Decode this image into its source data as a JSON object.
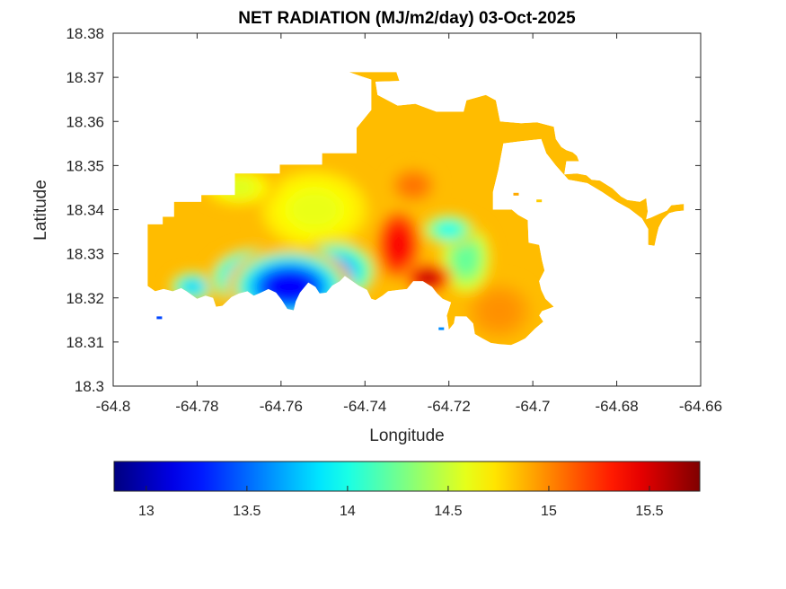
{
  "chart_data": {
    "type": "heatmap",
    "subtype": "filled-contour map",
    "title": "NET RADIATION (MJ/m2/day) 03-Oct-2025",
    "xlabel": "Longitude",
    "ylabel": "Latitude",
    "xlim": [
      -64.8,
      -64.66
    ],
    "ylim": [
      18.3,
      18.38
    ],
    "xticks": [
      -64.8,
      -64.78,
      -64.76,
      -64.74,
      -64.72,
      -64.7,
      -64.68,
      -64.66
    ],
    "xtick_labels": [
      "-64.8",
      "-64.78",
      "-64.76",
      "-64.74",
      "-64.72",
      "-64.7",
      "-64.68",
      "-64.66"
    ],
    "yticks": [
      18.3,
      18.31,
      18.32,
      18.33,
      18.34,
      18.35,
      18.36,
      18.37,
      18.38
    ],
    "ytick_labels": [
      "18.3",
      "18.31",
      "18.32",
      "18.33",
      "18.34",
      "18.35",
      "18.36",
      "18.37",
      "18.38"
    ],
    "grid": false,
    "colormap": "jet",
    "colorbar": {
      "orientation": "horizontal",
      "location": "bottom",
      "clim": [
        12.84,
        15.75
      ],
      "ticks": [
        13,
        13.5,
        14,
        14.5,
        15,
        15.5
      ],
      "tick_labels": [
        "13",
        "13.5",
        "14",
        "14.5",
        "15",
        "15.5"
      ]
    },
    "background_value": 14.85,
    "land_outline": [
      [
        -64.7918,
        18.3227
      ],
      [
        -64.7918,
        18.3367
      ],
      [
        -64.7882,
        18.3367
      ],
      [
        -64.7882,
        18.3384
      ],
      [
        -64.7855,
        18.3384
      ],
      [
        -64.7855,
        18.3418
      ],
      [
        -64.779,
        18.3418
      ],
      [
        -64.779,
        18.3433
      ],
      [
        -64.771,
        18.3433
      ],
      [
        -64.771,
        18.3482
      ],
      [
        -64.7603,
        18.3482
      ],
      [
        -64.7603,
        18.3502
      ],
      [
        -64.7502,
        18.3502
      ],
      [
        -64.7502,
        18.3528
      ],
      [
        -64.742,
        18.3528
      ],
      [
        -64.742,
        18.3585
      ],
      [
        -64.7385,
        18.3626
      ],
      [
        -64.7385,
        18.3695
      ],
      [
        -64.7408,
        18.3702
      ],
      [
        -64.7438,
        18.3712
      ],
      [
        -64.7325,
        18.3712
      ],
      [
        -64.7318,
        18.3692
      ],
      [
        -64.7375,
        18.369
      ],
      [
        -64.737,
        18.366
      ],
      [
        -64.7322,
        18.3636
      ],
      [
        -64.728,
        18.364
      ],
      [
        -64.723,
        18.3622
      ],
      [
        -64.7165,
        18.3622
      ],
      [
        -64.7158,
        18.3648
      ],
      [
        -64.7112,
        18.366
      ],
      [
        -64.7088,
        18.3648
      ],
      [
        -64.7078,
        18.36
      ],
      [
        -64.7028,
        18.3596
      ],
      [
        -64.699,
        18.3598
      ],
      [
        -64.695,
        18.3588
      ],
      [
        -64.6945,
        18.356
      ],
      [
        -64.6932,
        18.3542
      ],
      [
        -64.692,
        18.3535
      ],
      [
        -64.6905,
        18.353
      ],
      [
        -64.6895,
        18.3522
      ],
      [
        -64.689,
        18.351
      ],
      [
        -64.692,
        18.351
      ],
      [
        -64.6925,
        18.348
      ],
      [
        -64.6895,
        18.3482
      ],
      [
        -64.6872,
        18.3478
      ],
      [
        -64.686,
        18.3468
      ],
      [
        -64.684,
        18.3466
      ],
      [
        -64.681,
        18.3448
      ],
      [
        -64.679,
        18.343
      ],
      [
        -64.6775,
        18.3422
      ],
      [
        -64.6745,
        18.3418
      ],
      [
        -64.673,
        18.3426
      ],
      [
        -64.6726,
        18.3396
      ],
      [
        -64.673,
        18.3378
      ],
      [
        -64.6718,
        18.3382
      ],
      [
        -64.67,
        18.339
      ],
      [
        -64.668,
        18.3398
      ],
      [
        -64.667,
        18.341
      ],
      [
        -64.664,
        18.3413
      ],
      [
        -64.664,
        18.3398
      ],
      [
        -64.666,
        18.3396
      ],
      [
        -64.6675,
        18.3392
      ],
      [
        -64.669,
        18.3378
      ],
      [
        -64.67,
        18.336
      ],
      [
        -64.6705,
        18.334
      ],
      [
        -64.671,
        18.3318
      ],
      [
        -64.6725,
        18.332
      ],
      [
        -64.6725,
        18.3356
      ],
      [
        -64.674,
        18.338
      ],
      [
        -64.677,
        18.3402
      ],
      [
        -64.68,
        18.3418
      ],
      [
        -64.6835,
        18.344
      ],
      [
        -64.687,
        18.346
      ],
      [
        -64.6915,
        18.3468
      ],
      [
        -64.6945,
        18.35
      ],
      [
        -64.6968,
        18.3528
      ],
      [
        -64.698,
        18.356
      ],
      [
        -64.703,
        18.3555
      ],
      [
        -64.707,
        18.355
      ],
      [
        -64.7082,
        18.349
      ],
      [
        -64.7095,
        18.344
      ],
      [
        -64.7095,
        18.34
      ],
      [
        -64.705,
        18.34
      ],
      [
        -64.7035,
        18.3388
      ],
      [
        -64.7012,
        18.3376
      ],
      [
        -64.701,
        18.3325
      ],
      [
        -64.6985,
        18.332
      ],
      [
        -64.6978,
        18.3285
      ],
      [
        -64.6972,
        18.3262
      ],
      [
        -64.6985,
        18.3238
      ],
      [
        -64.698,
        18.3218
      ],
      [
        -64.697,
        18.3198
      ],
      [
        -64.695,
        18.318
      ],
      [
        -64.6978,
        18.317
      ],
      [
        -64.6985,
        18.316
      ],
      [
        -64.6975,
        18.3146
      ],
      [
        -64.6995,
        18.313
      ],
      [
        -64.7018,
        18.3108
      ],
      [
        -64.7035,
        18.31
      ],
      [
        -64.7052,
        18.3093
      ],
      [
        -64.708,
        18.3095
      ],
      [
        -64.71,
        18.3098
      ],
      [
        -64.712,
        18.3108
      ],
      [
        -64.7138,
        18.3118
      ],
      [
        -64.7142,
        18.3142
      ],
      [
        -64.7158,
        18.3158
      ],
      [
        -64.7185,
        18.3158
      ],
      [
        -64.7188,
        18.3142
      ],
      [
        -64.72,
        18.3128
      ],
      [
        -64.7205,
        18.316
      ],
      [
        -64.7195,
        18.319
      ],
      [
        -64.7215,
        18.3198
      ],
      [
        -64.7228,
        18.321
      ],
      [
        -64.724,
        18.3225
      ],
      [
        -64.7262,
        18.3238
      ],
      [
        -64.7285,
        18.3238
      ],
      [
        -64.73,
        18.322
      ],
      [
        -64.732,
        18.3218
      ],
      [
        -64.7345,
        18.3215
      ],
      [
        -64.7358,
        18.3205
      ],
      [
        -64.7375,
        18.3195
      ],
      [
        -64.7385,
        18.3198
      ],
      [
        -64.7395,
        18.3218
      ],
      [
        -64.7415,
        18.3228
      ],
      [
        -64.743,
        18.3238
      ],
      [
        -64.7448,
        18.325
      ],
      [
        -64.746,
        18.3238
      ],
      [
        -64.7478,
        18.3228
      ],
      [
        -64.7492,
        18.3212
      ],
      [
        -64.7508,
        18.321
      ],
      [
        -64.7518,
        18.3225
      ],
      [
        -64.7535,
        18.3235
      ],
      [
        -64.7555,
        18.3212
      ],
      [
        -64.7565,
        18.3192
      ],
      [
        -64.757,
        18.3172
      ],
      [
        -64.7585,
        18.3175
      ],
      [
        -64.7598,
        18.3195
      ],
      [
        -64.7612,
        18.3212
      ],
      [
        -64.763,
        18.322
      ],
      [
        -64.7648,
        18.3212
      ],
      [
        -64.7665,
        18.3205
      ],
      [
        -64.768,
        18.3215
      ],
      [
        -64.77,
        18.321
      ],
      [
        -64.7718,
        18.3202
      ],
      [
        -64.774,
        18.3182
      ],
      [
        -64.7755,
        18.318
      ],
      [
        -64.7762,
        18.32
      ],
      [
        -64.778,
        18.3205
      ],
      [
        -64.78,
        18.3198
      ],
      [
        -64.7825,
        18.3215
      ],
      [
        -64.7838,
        18.3222
      ],
      [
        -64.7858,
        18.3215
      ],
      [
        -64.788,
        18.322
      ],
      [
        -64.79,
        18.3215
      ]
    ],
    "islets": [
      {
        "lon": -64.789,
        "lat": 18.3155,
        "value": 13.4
      },
      {
        "lon": -64.7218,
        "lat": 18.313,
        "value": 13.6
      },
      {
        "lon": -64.704,
        "lat": 18.3435,
        "value": 14.9
      },
      {
        "lon": -64.6985,
        "lat": 18.342,
        "value": 14.8
      }
    ],
    "field_features": [
      {
        "name": "southwest-low",
        "lon": -64.758,
        "lat": 18.3225,
        "value": 12.9,
        "rx": 0.01,
        "ry": 0.006
      },
      {
        "name": "southwest-low-ext",
        "lon": -64.766,
        "lat": 18.3245,
        "value": 13.2,
        "rx": 0.008,
        "ry": 0.005
      },
      {
        "name": "south-central-low",
        "lon": -64.747,
        "lat": 18.326,
        "value": 13.4,
        "rx": 0.007,
        "ry": 0.005
      },
      {
        "name": "west-cool",
        "lon": -64.781,
        "lat": 18.3225,
        "value": 13.6,
        "rx": 0.004,
        "ry": 0.0025
      },
      {
        "name": "east-cool",
        "lon": -64.72,
        "lat": 18.3355,
        "value": 13.8,
        "rx": 0.0045,
        "ry": 0.0025
      },
      {
        "name": "east-cool-ext",
        "lon": -64.716,
        "lat": 18.329,
        "value": 14.1,
        "rx": 0.0045,
        "ry": 0.006
      },
      {
        "name": "central-hot",
        "lon": -64.732,
        "lat": 18.332,
        "value": 15.5,
        "rx": 0.004,
        "ry": 0.006
      },
      {
        "name": "southern-hot",
        "lon": -64.725,
        "lat": 18.3245,
        "value": 15.7,
        "rx": 0.004,
        "ry": 0.0025
      },
      {
        "name": "west-hot",
        "lon": -64.7385,
        "lat": 18.327,
        "value": 15.3,
        "rx": 0.003,
        "ry": 0.0025
      },
      {
        "name": "north-warm",
        "lon": -64.7285,
        "lat": 18.3455,
        "value": 15.1,
        "rx": 0.004,
        "ry": 0.003
      },
      {
        "name": "northwest-green",
        "lon": -64.77,
        "lat": 18.345,
        "value": 14.5,
        "rx": 0.006,
        "ry": 0.003
      },
      {
        "name": "central-green",
        "lon": -64.752,
        "lat": 18.34,
        "value": 14.55,
        "rx": 0.01,
        "ry": 0.007
      },
      {
        "name": "south-east-orange",
        "lon": -64.708,
        "lat": 18.317,
        "value": 15.0,
        "rx": 0.006,
        "ry": 0.005
      },
      {
        "name": "far-east-green",
        "lon": -64.676,
        "lat": 18.346,
        "value": 14.3,
        "rx": 0.002,
        "ry": 0.0012
      }
    ]
  }
}
